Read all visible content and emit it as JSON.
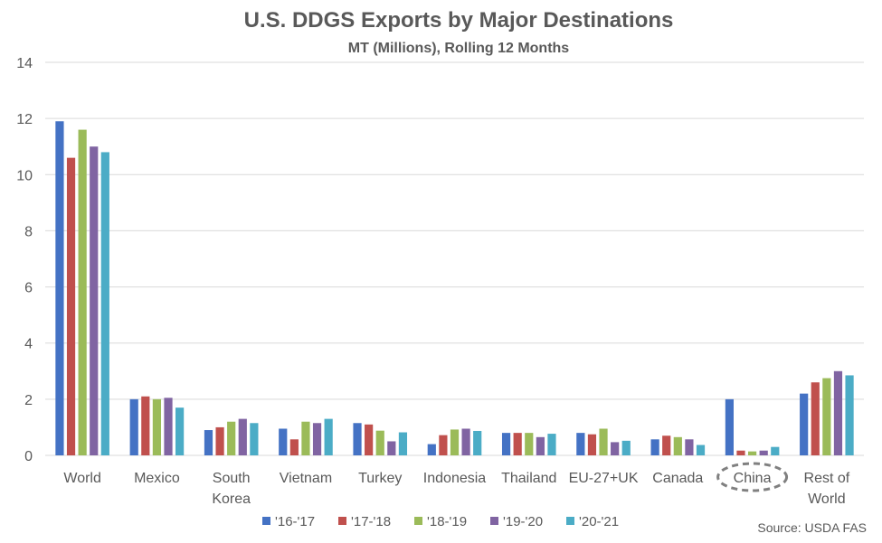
{
  "chart_data": {
    "type": "bar",
    "title": "U.S. DDGS Exports by Major Destinations",
    "subtitle": "MT (Millions), Rolling 12 Months",
    "categories": [
      [
        "World"
      ],
      [
        "Mexico"
      ],
      [
        "South",
        "Korea"
      ],
      [
        "Vietnam"
      ],
      [
        "Turkey"
      ],
      [
        "Indonesia"
      ],
      [
        "Thailand"
      ],
      [
        "EU-27+UK"
      ],
      [
        "Canada"
      ],
      [
        "China"
      ],
      [
        "Rest of",
        "World"
      ]
    ],
    "series": [
      {
        "name": "'16-'17",
        "color": "#4472C4",
        "values": [
          11.9,
          2.0,
          0.9,
          0.95,
          1.15,
          0.4,
          0.8,
          0.8,
          0.57,
          2.0,
          2.2
        ]
      },
      {
        "name": "'17-'18",
        "color": "#C0504D",
        "values": [
          10.6,
          2.1,
          1.0,
          0.57,
          1.1,
          0.72,
          0.8,
          0.75,
          0.7,
          0.17,
          2.6
        ]
      },
      {
        "name": "'18-'19",
        "color": "#9BBB59",
        "values": [
          11.6,
          2.0,
          1.2,
          1.2,
          0.88,
          0.92,
          0.8,
          0.95,
          0.65,
          0.14,
          2.75
        ]
      },
      {
        "name": "'19-'20",
        "color": "#8064A2",
        "values": [
          11.0,
          2.05,
          1.3,
          1.15,
          0.5,
          0.95,
          0.65,
          0.47,
          0.57,
          0.17,
          3.0
        ]
      },
      {
        "name": "'20-'21",
        "color": "#4BACC6",
        "values": [
          10.8,
          1.7,
          1.15,
          1.3,
          0.82,
          0.87,
          0.77,
          0.52,
          0.37,
          0.3,
          2.85
        ]
      }
    ],
    "ylim": [
      0,
      14
    ],
    "yticks": [
      0,
      2,
      4,
      6,
      8,
      10,
      12,
      14
    ],
    "grid": true,
    "legend_position": "bottom",
    "highlight": "China",
    "source": "Source: USDA FAS"
  }
}
